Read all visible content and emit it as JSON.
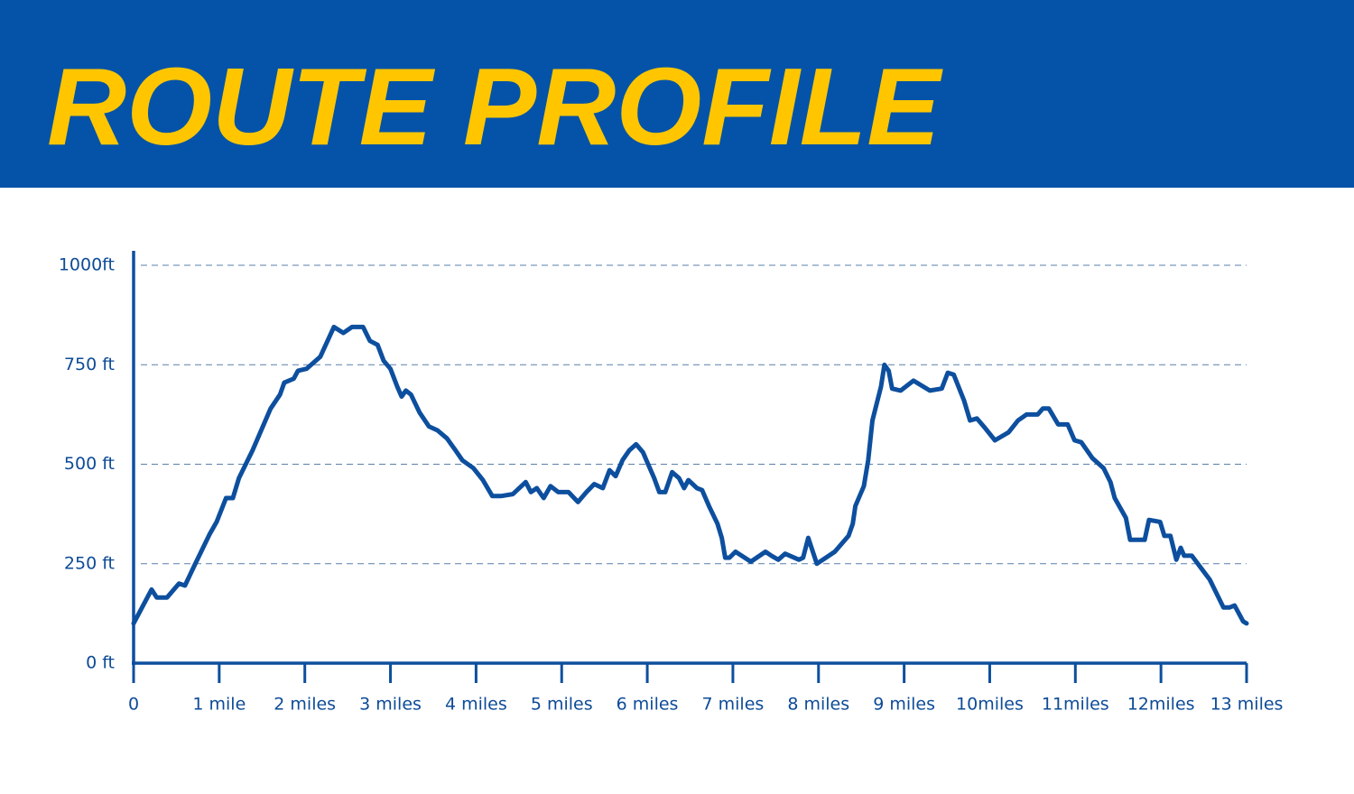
{
  "chart_data": {
    "type": "line",
    "title": "ROUTE PROFILE",
    "color": "#0d4f9e",
    "grid": true,
    "xlim": [
      0,
      13
    ],
    "ylim": [
      0,
      1000
    ],
    "xticks": [
      0,
      {
        "value": 1,
        "label": "1 mile"
      },
      {
        "value": 2,
        "label": "2 miles"
      },
      {
        "value": 3,
        "label": "3 miles"
      },
      {
        "value": 4,
        "label": "4 miles"
      },
      {
        "value": 5,
        "label": "5 miles"
      },
      {
        "value": 6,
        "label": "6 miles"
      },
      {
        "value": 7,
        "label": "7 miles"
      },
      {
        "value": 8,
        "label": "8 miles"
      },
      {
        "value": 9,
        "label": "9 miles"
      },
      {
        "value": 10,
        "label": "10miles"
      },
      {
        "value": 11,
        "label": "11miles"
      },
      {
        "value": 12,
        "label": "12miles"
      },
      {
        "value": 13,
        "label": "13 miles"
      }
    ],
    "yticks": [
      {
        "value": 0,
        "label": "0 ft"
      },
      {
        "value": 250,
        "label": "250 ft"
      },
      {
        "value": 500,
        "label": "500 ft"
      },
      {
        "value": 750,
        "label": "750 ft"
      },
      {
        "value": 1000,
        "label": "1000ft"
      }
    ],
    "x": [
      0,
      0.21,
      0.27,
      0.39,
      0.53,
      0.6,
      0.71,
      0.89,
      0.97,
      1.08,
      1.16,
      1.23,
      1.39,
      1.6,
      1.71,
      1.76,
      1.87,
      1.92,
      2.02,
      2.18,
      2.34,
      2.45,
      2.55,
      2.68,
      2.76,
      2.85,
      2.92,
      3.0,
      3.08,
      3.13,
      3.18,
      3.24,
      3.34,
      3.45,
      3.55,
      3.66,
      3.76,
      3.84,
      3.97,
      4.08,
      4.19,
      4.29,
      4.43,
      4.58,
      4.64,
      4.71,
      4.79,
      4.87,
      4.96,
      5.08,
      5.19,
      5.29,
      5.38,
      5.48,
      5.56,
      5.63,
      5.71,
      5.79,
      5.87,
      5.95,
      6.01,
      6.08,
      6.14,
      6.21,
      6.29,
      6.37,
      6.43,
      6.48,
      6.58,
      6.64,
      6.72,
      6.82,
      6.87,
      6.91,
      6.96,
      7.03,
      7.21,
      7.38,
      7.45,
      7.53,
      7.61,
      7.77,
      7.82,
      7.88,
      7.98,
      8.19,
      8.35,
      8.4,
      8.43,
      8.53,
      8.58,
      8.63,
      8.73,
      8.77,
      8.82,
      8.86,
      8.96,
      9.11,
      9.3,
      9.44,
      9.51,
      9.58,
      9.7,
      9.77,
      9.85,
      9.93,
      10.06,
      10.22,
      10.33,
      10.43,
      10.56,
      10.62,
      10.69,
      10.8,
      10.91,
      10.99,
      11.07,
      11.2,
      11.33,
      11.41,
      11.46,
      11.59,
      11.64,
      11.81,
      11.86,
      11.99,
      12.04,
      12.11,
      12.18,
      12.23,
      12.27,
      12.36,
      12.57,
      12.73,
      12.8,
      12.86,
      12.96,
      13.0
    ],
    "values": [
      100,
      185,
      165,
      165,
      200,
      195,
      245,
      325,
      355,
      415,
      415,
      465,
      535,
      640,
      675,
      705,
      715,
      735,
      740,
      770,
      845,
      830,
      845,
      845,
      810,
      800,
      760,
      740,
      695,
      670,
      685,
      675,
      630,
      595,
      585,
      565,
      535,
      510,
      490,
      460,
      420,
      420,
      425,
      455,
      430,
      440,
      415,
      445,
      430,
      430,
      405,
      430,
      450,
      440,
      485,
      470,
      510,
      535,
      550,
      530,
      500,
      465,
      430,
      430,
      480,
      465,
      440,
      460,
      440,
      435,
      395,
      350,
      315,
      265,
      265,
      280,
      255,
      280,
      270,
      260,
      275,
      260,
      265,
      315,
      250,
      280,
      320,
      350,
      395,
      445,
      510,
      610,
      695,
      750,
      735,
      690,
      685,
      710,
      685,
      690,
      730,
      725,
      660,
      610,
      615,
      595,
      560,
      580,
      610,
      625,
      625,
      640,
      640,
      600,
      600,
      560,
      555,
      515,
      490,
      455,
      415,
      365,
      310,
      310,
      360,
      355,
      320,
      320,
      260,
      290,
      270,
      270,
      210,
      140,
      140,
      145,
      105,
      100
    ]
  }
}
